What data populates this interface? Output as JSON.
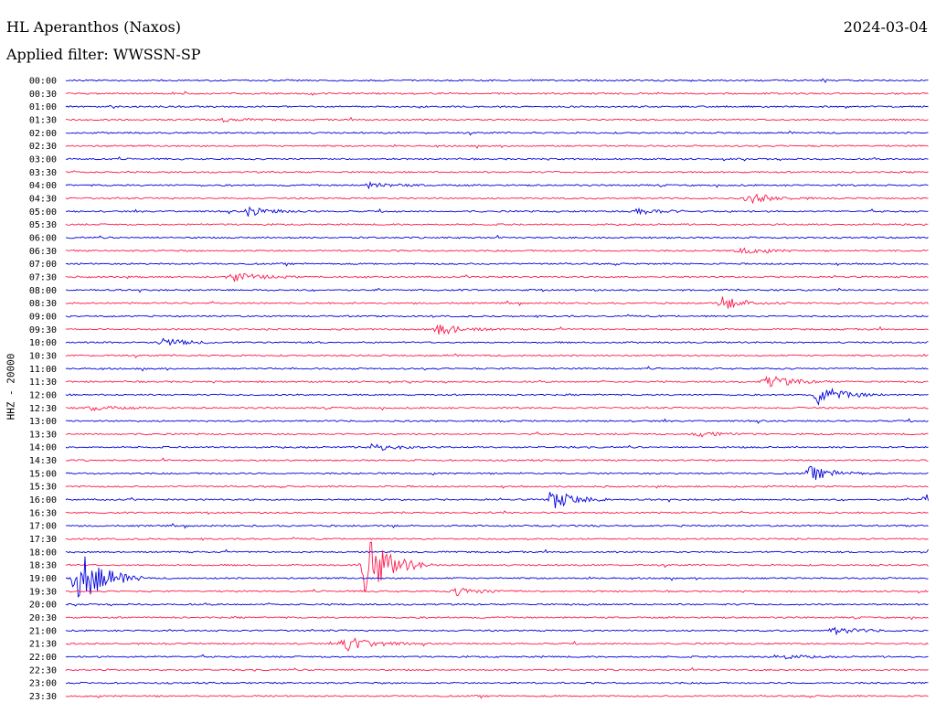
{
  "header": {
    "station": "HL Aperanthos (Naxos)",
    "date": "2024-03-04",
    "filter": "Applied filter: WWSSN-SP"
  },
  "channel_label": "HHZ - 20000",
  "colors": {
    "even_trace": "#0000dd",
    "odd_trace": "#ff1a4d"
  },
  "chart_data": {
    "type": "line",
    "title": "HL Aperanthos (Naxos)",
    "subtitle": "Applied filter: WWSSN-SP",
    "ylabel": "HHZ - 20000",
    "categories": [
      "00:00",
      "00:30",
      "01:00",
      "01:30",
      "02:00",
      "02:30",
      "03:00",
      "03:30",
      "04:00",
      "04:30",
      "05:00",
      "05:30",
      "06:00",
      "06:30",
      "07:00",
      "07:30",
      "08:00",
      "08:30",
      "09:00",
      "09:30",
      "10:00",
      "10:30",
      "11:00",
      "11:30",
      "12:00",
      "12:30",
      "13:00",
      "13:30",
      "14:00",
      "14:30",
      "15:00",
      "15:30",
      "16:00",
      "16:30",
      "17:00",
      "17:30",
      "18:00",
      "18:30",
      "19:00",
      "19:30",
      "20:00",
      "20:30",
      "21:00",
      "21:30",
      "22:00",
      "22:30",
      "23:00",
      "23:30"
    ],
    "events": [
      {
        "row": "01:30",
        "x": 0.18,
        "amp": 2
      },
      {
        "row": "04:00",
        "x": 0.35,
        "amp": 3
      },
      {
        "row": "04:30",
        "x": 0.79,
        "amp": 6
      },
      {
        "row": "05:00",
        "x": 0.21,
        "amp": 5
      },
      {
        "row": "05:00",
        "x": 0.66,
        "amp": 4
      },
      {
        "row": "06:30",
        "x": 0.78,
        "amp": 4
      },
      {
        "row": "07:30",
        "x": 0.19,
        "amp": 6
      },
      {
        "row": "08:30",
        "x": 0.76,
        "amp": 7
      },
      {
        "row": "09:30",
        "x": 0.43,
        "amp": 7
      },
      {
        "row": "10:00",
        "x": 0.11,
        "amp": 5
      },
      {
        "row": "11:30",
        "x": 0.81,
        "amp": 8
      },
      {
        "row": "12:00",
        "x": 0.87,
        "amp": 11
      },
      {
        "row": "12:30",
        "x": 0.03,
        "amp": 3
      },
      {
        "row": "13:30",
        "x": 0.73,
        "amp": 4
      },
      {
        "row": "14:00",
        "x": 0.35,
        "amp": 5
      },
      {
        "row": "15:00",
        "x": 0.86,
        "amp": 8
      },
      {
        "row": "16:00",
        "x": 0.56,
        "amp": 12
      },
      {
        "row": "16:00",
        "x": 0.995,
        "amp": 7
      },
      {
        "row": "18:00",
        "x": 0.995,
        "amp": 4
      },
      {
        "row": "18:30",
        "x": 0.345,
        "amp": 38
      },
      {
        "row": "18:30",
        "x": 1.0,
        "amp": 8
      },
      {
        "row": "19:00",
        "x": 0.01,
        "amp": 40
      },
      {
        "row": "19:30",
        "x": 0.45,
        "amp": 5
      },
      {
        "row": "21:00",
        "x": 0.89,
        "amp": 4
      },
      {
        "row": "21:30",
        "x": 0.32,
        "amp": 12
      },
      {
        "row": "22:00",
        "x": 0.82,
        "amp": 3
      }
    ]
  }
}
